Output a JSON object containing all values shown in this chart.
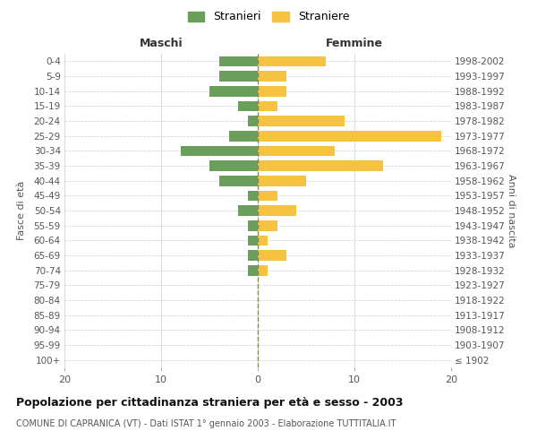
{
  "age_groups": [
    "100+",
    "95-99",
    "90-94",
    "85-89",
    "80-84",
    "75-79",
    "70-74",
    "65-69",
    "60-64",
    "55-59",
    "50-54",
    "45-49",
    "40-44",
    "35-39",
    "30-34",
    "25-29",
    "20-24",
    "15-19",
    "10-14",
    "5-9",
    "0-4"
  ],
  "birth_years": [
    "≤ 1902",
    "1903-1907",
    "1908-1912",
    "1913-1917",
    "1918-1922",
    "1923-1927",
    "1928-1932",
    "1933-1937",
    "1938-1942",
    "1943-1947",
    "1948-1952",
    "1953-1957",
    "1958-1962",
    "1963-1967",
    "1968-1972",
    "1973-1977",
    "1978-1982",
    "1983-1987",
    "1988-1992",
    "1993-1997",
    "1998-2002"
  ],
  "maschi": [
    0,
    0,
    0,
    0,
    0,
    0,
    1,
    1,
    1,
    1,
    2,
    1,
    4,
    5,
    8,
    3,
    1,
    2,
    5,
    4,
    4
  ],
  "femmine": [
    0,
    0,
    0,
    0,
    0,
    0,
    1,
    3,
    1,
    2,
    4,
    2,
    5,
    13,
    8,
    19,
    9,
    2,
    3,
    3,
    7
  ],
  "color_maschi": "#6a9f5b",
  "color_femmine": "#f5c242",
  "title": "Popolazione per cittadinanza straniera per età e sesso - 2003",
  "subtitle": "COMUNE DI CAPRANICA (VT) - Dati ISTAT 1° gennaio 2003 - Elaborazione TUTTITALIA.IT",
  "xlabel_left": "Maschi",
  "xlabel_right": "Femmine",
  "ylabel_left": "Fasce di età",
  "ylabel_right": "Anni di nascita",
  "legend_stranieri": "Stranieri",
  "legend_straniere": "Straniere",
  "xlim": 20,
  "background_color": "#ffffff",
  "grid_color": "#cccccc"
}
